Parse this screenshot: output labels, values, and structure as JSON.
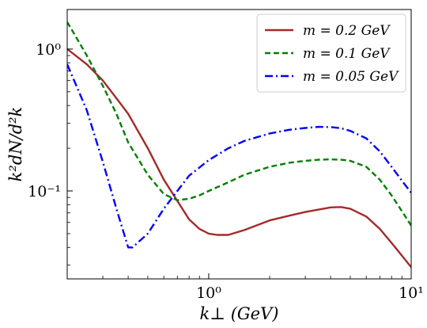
{
  "chart_data": {
    "type": "line",
    "xlabel": "k⊥ (GeV)",
    "ylabel": "k²dN/d²k",
    "xscale": "log",
    "yscale": "log",
    "xlim": [
      0.2,
      10
    ],
    "ylim": [
      0.024,
      1.9
    ],
    "grid": false,
    "legend_position": "top-right",
    "x_ticks": [
      {
        "value": 1,
        "label": "10⁰"
      },
      {
        "value": 10,
        "label": "10¹"
      }
    ],
    "y_ticks": [
      {
        "value": 1,
        "label": "10⁰"
      },
      {
        "value": 0.1,
        "label": "10⁻¹"
      }
    ],
    "series": [
      {
        "name": "m = 0.2 GeV",
        "color": "#a52a2a",
        "dash": "solid",
        "points": [
          [
            0.2,
            1.0
          ],
          [
            0.25,
            0.78
          ],
          [
            0.3,
            0.6
          ],
          [
            0.35,
            0.45
          ],
          [
            0.4,
            0.35
          ],
          [
            0.5,
            0.2
          ],
          [
            0.6,
            0.12
          ],
          [
            0.7,
            0.085
          ],
          [
            0.8,
            0.063
          ],
          [
            0.9,
            0.054
          ],
          [
            1.0,
            0.05
          ],
          [
            1.1,
            0.049
          ],
          [
            1.25,
            0.049
          ],
          [
            1.5,
            0.053
          ],
          [
            2.0,
            0.062
          ],
          [
            2.5,
            0.067
          ],
          [
            3.0,
            0.071
          ],
          [
            3.5,
            0.074
          ],
          [
            4.0,
            0.0765
          ],
          [
            4.5,
            0.077
          ],
          [
            5.0,
            0.075
          ],
          [
            6.0,
            0.066
          ],
          [
            7.0,
            0.054
          ],
          [
            8.0,
            0.043
          ],
          [
            9.0,
            0.035
          ],
          [
            10.0,
            0.029
          ]
        ]
      },
      {
        "name": "m = 0.1 GeV",
        "color": "#008000",
        "dash": "dashed",
        "points": [
          [
            0.2,
            1.55
          ],
          [
            0.25,
            0.9
          ],
          [
            0.3,
            0.55
          ],
          [
            0.35,
            0.35
          ],
          [
            0.4,
            0.22
          ],
          [
            0.5,
            0.13
          ],
          [
            0.6,
            0.095
          ],
          [
            0.7,
            0.086
          ],
          [
            0.8,
            0.088
          ],
          [
            0.9,
            0.093
          ],
          [
            1.0,
            0.1
          ],
          [
            1.25,
            0.115
          ],
          [
            1.5,
            0.13
          ],
          [
            2.0,
            0.148
          ],
          [
            2.5,
            0.158
          ],
          [
            3.0,
            0.163
          ],
          [
            3.5,
            0.166
          ],
          [
            4.0,
            0.167
          ],
          [
            4.5,
            0.166
          ],
          [
            5.0,
            0.163
          ],
          [
            6.0,
            0.148
          ],
          [
            7.0,
            0.12
          ],
          [
            8.0,
            0.093
          ],
          [
            9.0,
            0.072
          ],
          [
            10.0,
            0.057
          ]
        ]
      },
      {
        "name": "m = 0.05 GeV",
        "color": "#0000ff",
        "dash": "dashdot",
        "points": [
          [
            0.2,
            0.78
          ],
          [
            0.25,
            0.37
          ],
          [
            0.3,
            0.16
          ],
          [
            0.35,
            0.075
          ],
          [
            0.4,
            0.04
          ],
          [
            0.42,
            0.04
          ],
          [
            0.5,
            0.05
          ],
          [
            0.6,
            0.075
          ],
          [
            0.7,
            0.1
          ],
          [
            0.8,
            0.128
          ],
          [
            1.0,
            0.165
          ],
          [
            1.25,
            0.2
          ],
          [
            1.5,
            0.225
          ],
          [
            2.0,
            0.254
          ],
          [
            2.5,
            0.27
          ],
          [
            3.0,
            0.278
          ],
          [
            3.5,
            0.283
          ],
          [
            4.0,
            0.282
          ],
          [
            4.5,
            0.277
          ],
          [
            5.0,
            0.265
          ],
          [
            6.0,
            0.235
          ],
          [
            7.0,
            0.19
          ],
          [
            8.0,
            0.148
          ],
          [
            9.0,
            0.118
          ],
          [
            10.0,
            0.097
          ]
        ]
      }
    ]
  }
}
